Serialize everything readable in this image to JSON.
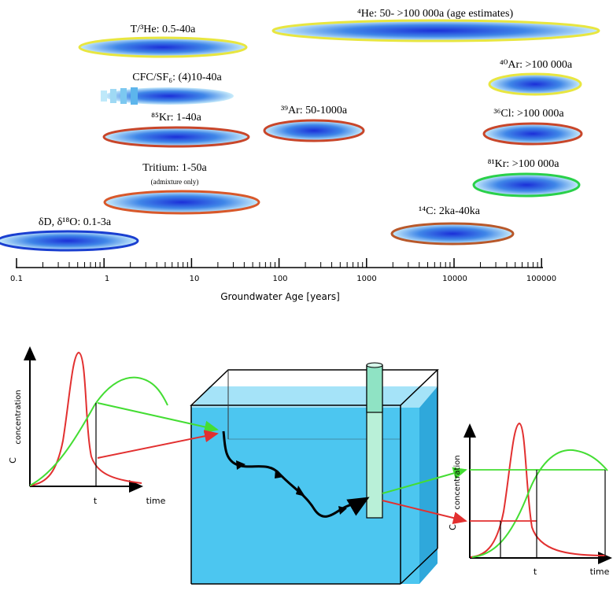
{
  "colors": {
    "gas_outline": "#e8e640",
    "noble_outline": "#c8462a",
    "isotope_outline": "#1a3fd0",
    "green_outline": "#2ad04a",
    "carbon_outline": "#b8582a",
    "water": "#4cc6f0",
    "curve_red": "#e23030",
    "curve_green": "#44dd33"
  },
  "tracers": [
    {
      "id": "t3he",
      "label": "T/³He: 0.5-40a"
    },
    {
      "id": "cfc",
      "label": "CFC/SF₆: (4)10-40a"
    },
    {
      "id": "kr85",
      "label": "⁸⁵Kr: 1-40a"
    },
    {
      "id": "tritium",
      "label": "Tritium: 1-50a",
      "note": "(admixture only)"
    },
    {
      "id": "dD",
      "label": "δD, δ¹⁸O: 0.1-3a"
    },
    {
      "id": "ar39",
      "label": "³⁹Ar: 50-1000a"
    },
    {
      "id": "he4",
      "label": "⁴He: 50- >100 000a (age estimates)"
    },
    {
      "id": "ar40",
      "label": "⁴⁰Ar: >100 000a"
    },
    {
      "id": "cl36",
      "label": "³⁶Cl: >100 000a"
    },
    {
      "id": "kr81",
      "label": "⁸¹Kr: >100 000a"
    },
    {
      "id": "c14",
      "label": "¹⁴C: 2ka-40ka"
    }
  ],
  "axis": {
    "title": "Groundwater Age [years]",
    "ticks": [
      "0.1",
      "1",
      "10",
      "100",
      "1000",
      "10000",
      "100000"
    ]
  },
  "left_graph": {
    "ylabel": "concentration",
    "ysym": "C",
    "xsym": "t",
    "xlabel": "time"
  },
  "right_graph": {
    "ylabel": "concentration",
    "ysym": "C",
    "xsym": "t",
    "xlabel": "time"
  }
}
